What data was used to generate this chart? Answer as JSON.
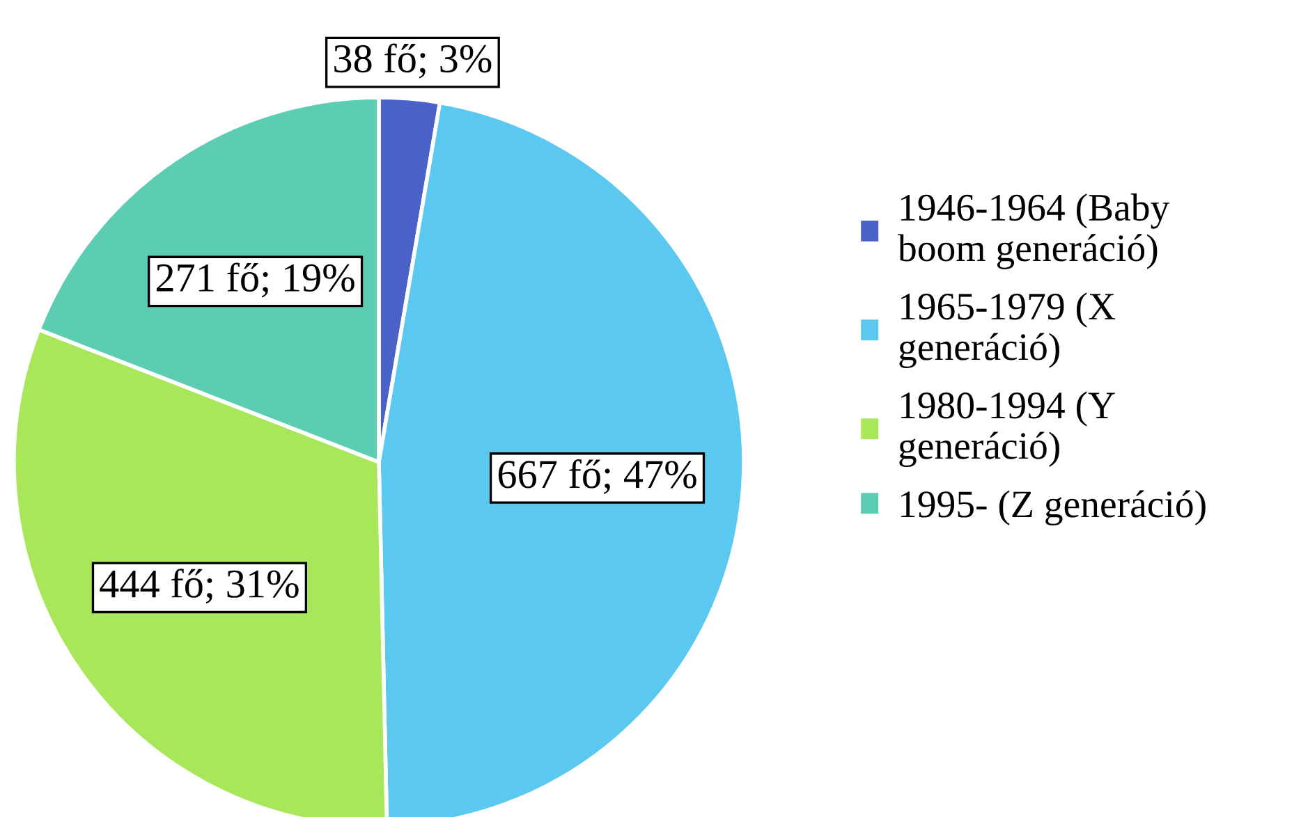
{
  "chart_data": {
    "type": "pie",
    "categories": [
      "1946-1964 (Baby boom generáció)",
      "1965-1979 (X generáció)",
      "1980-1994 (Y generáció)",
      "1995- (Z generáció)"
    ],
    "values": [
      38,
      667,
      444,
      271
    ],
    "value_labels": [
      "38 fő; 3%",
      "667 fő; 47%",
      "444 fő; 31%",
      "271 fő; 19%"
    ],
    "colors": [
      "#4a62c8",
      "#5bc8f0",
      "#a8e65a",
      "#5ccdb3"
    ],
    "legend": "right"
  }
}
